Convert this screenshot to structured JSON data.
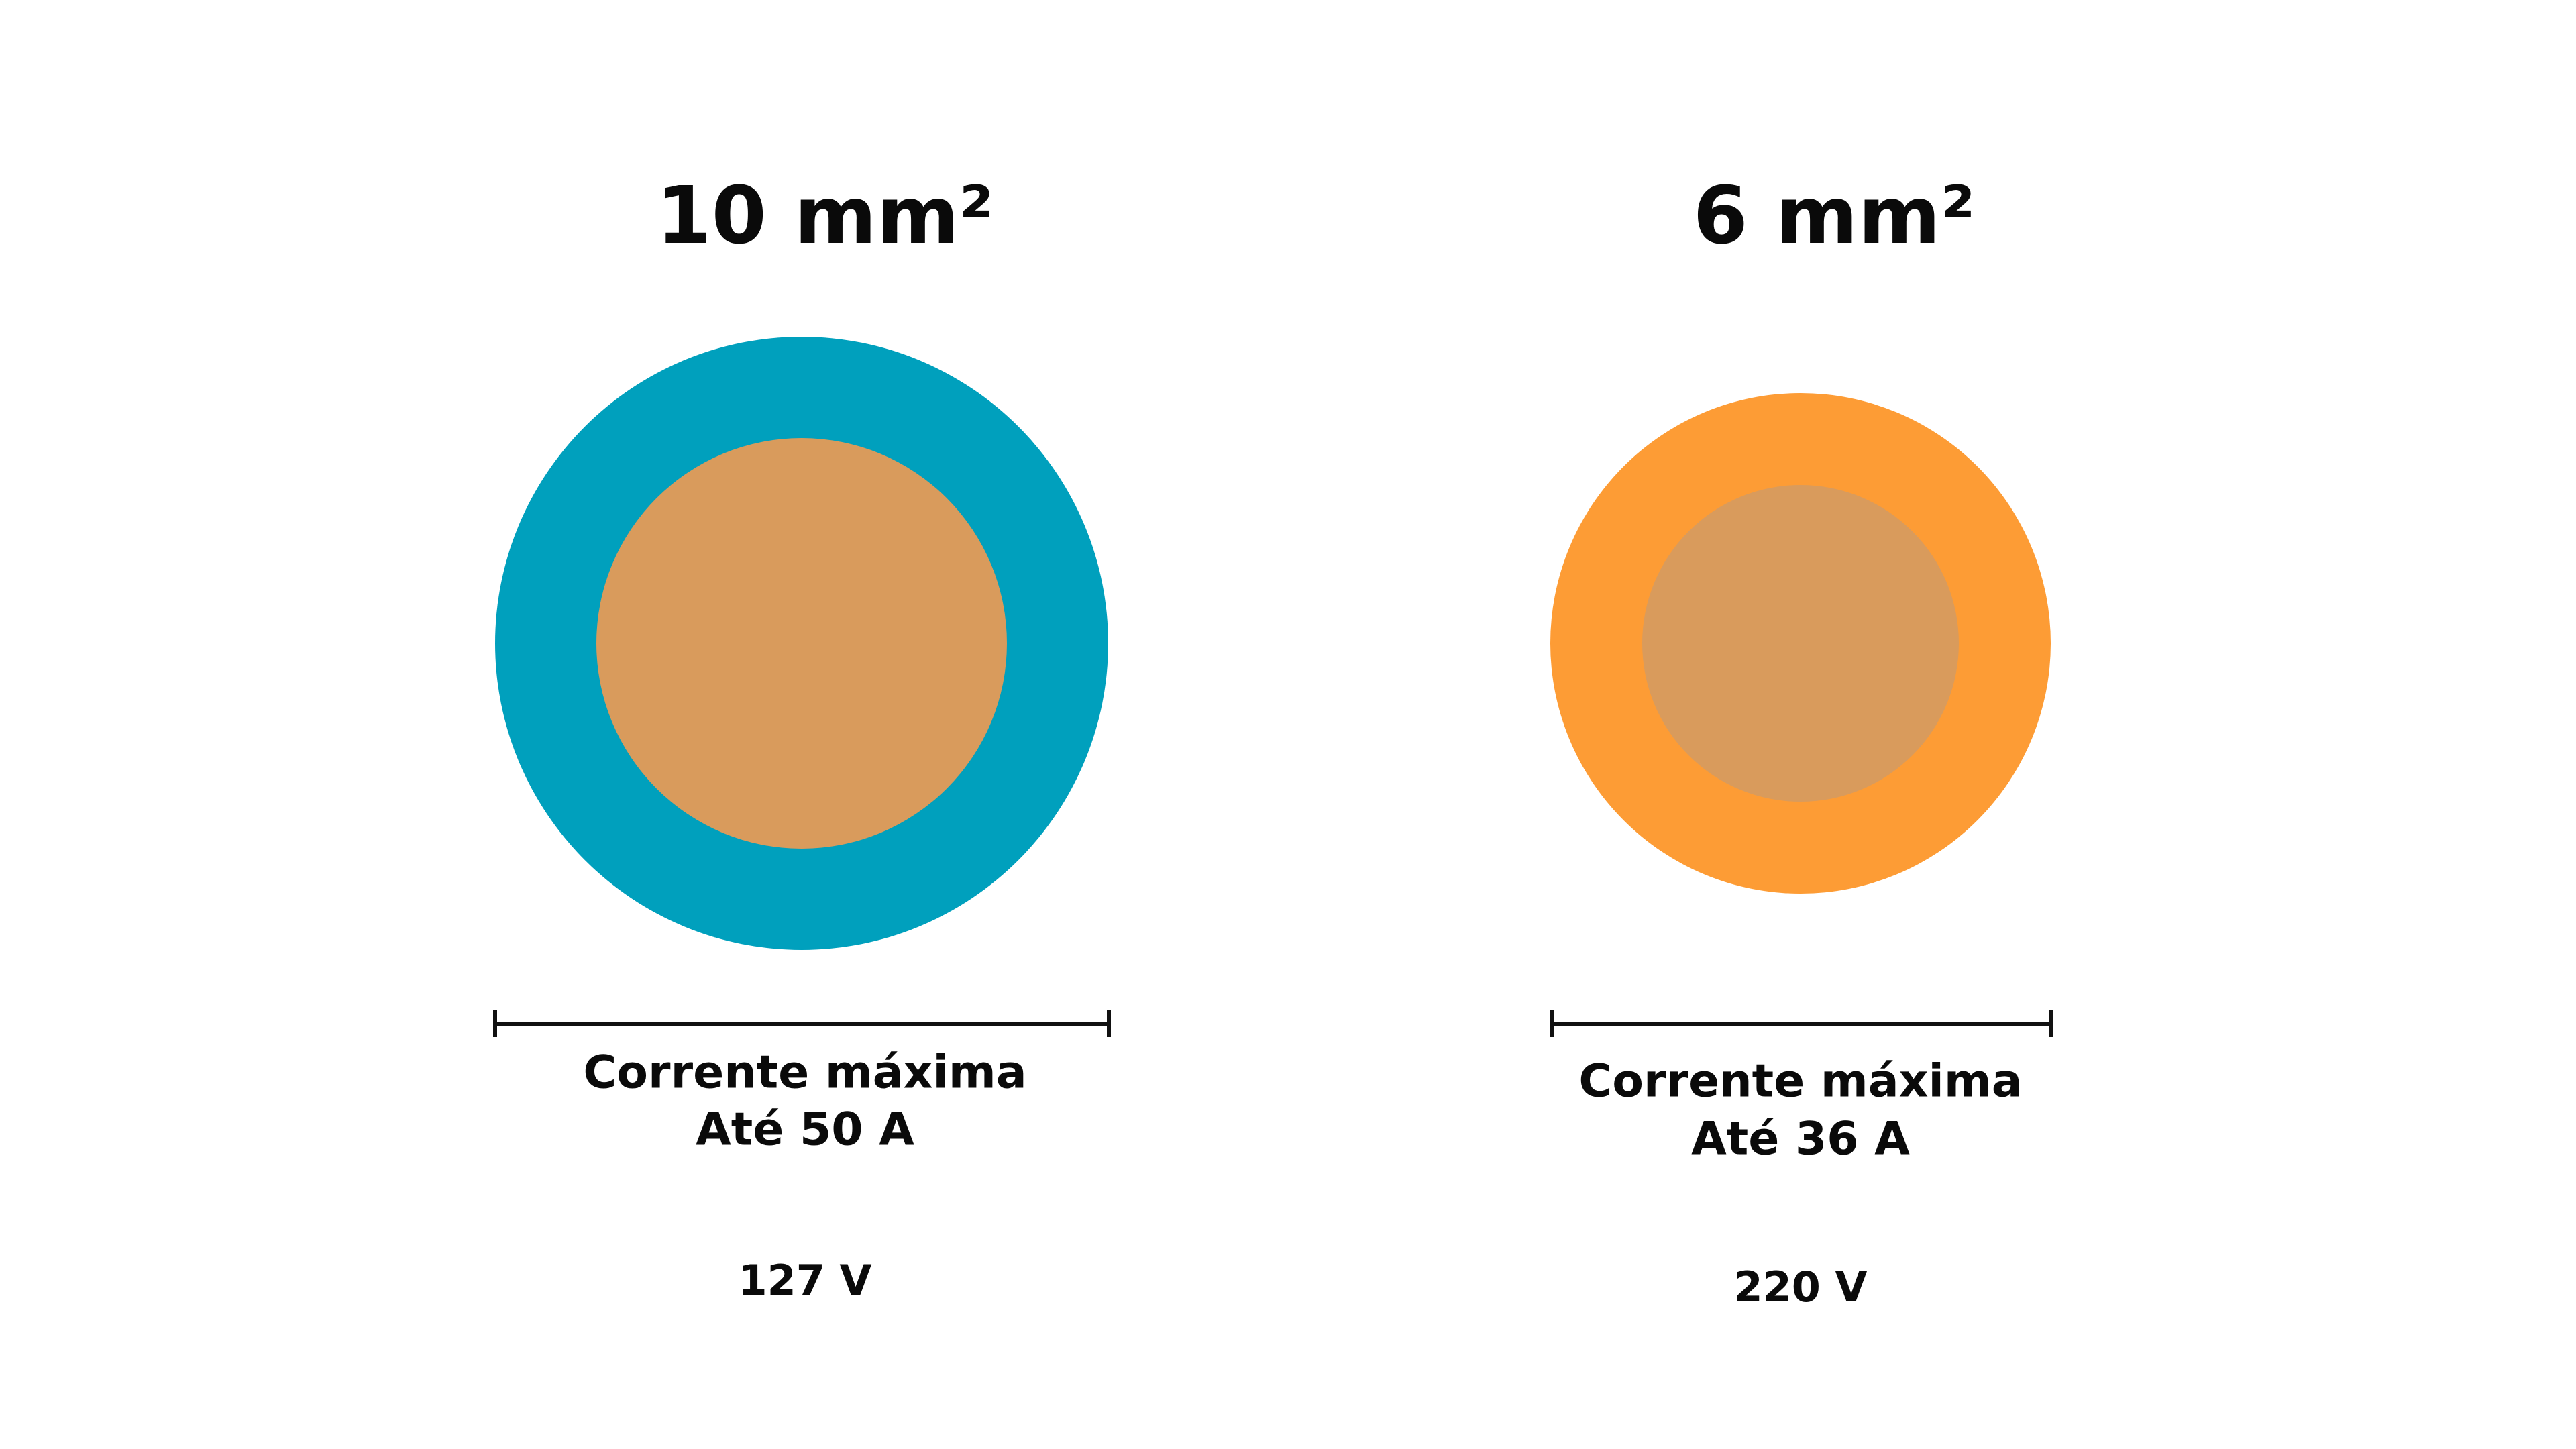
{
  "panels": [
    {
      "title": "10 mm²",
      "line1": "Corrente máxima",
      "line2": "Até 50 A",
      "voltage": "127 V"
    },
    {
      "title": "6 mm²",
      "line1": "Corrente máxima",
      "line2": "Até 36 A",
      "voltage": "220 V"
    }
  ]
}
